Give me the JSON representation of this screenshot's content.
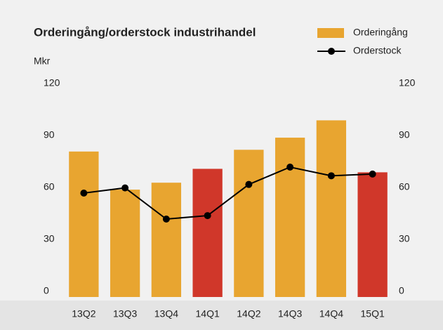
{
  "chart_data": {
    "type": "bar-line",
    "title": "Orderingång/orderstock industrihandel",
    "y_label": "Mkr",
    "categories": [
      "13Q2",
      "13Q3",
      "13Q4",
      "14Q1",
      "14Q2",
      "14Q3",
      "14Q4",
      "15Q1"
    ],
    "series": [
      {
        "name": "Orderingång",
        "type": "bar",
        "color": "#e8a530",
        "colors": [
          "#e8a530",
          "#e8a530",
          "#e8a530",
          "#d0372a",
          "#e8a530",
          "#e8a530",
          "#e8a530",
          "#d0372a"
        ],
        "values": [
          84,
          62,
          66,
          74,
          85,
          92,
          102,
          72
        ]
      },
      {
        "name": "Orderstock",
        "type": "line",
        "color": "#000000",
        "axis": "y2",
        "values": [
          60,
          63,
          45,
          47,
          65,
          75,
          70,
          71
        ]
      }
    ],
    "ylim": [
      0,
      120
    ],
    "yticks": [
      0,
      30,
      60,
      90,
      120
    ],
    "y2lim": [
      0,
      120
    ],
    "y2ticks": [
      0,
      30,
      60,
      90,
      120
    ],
    "grid": false,
    "legend": "top-right"
  }
}
